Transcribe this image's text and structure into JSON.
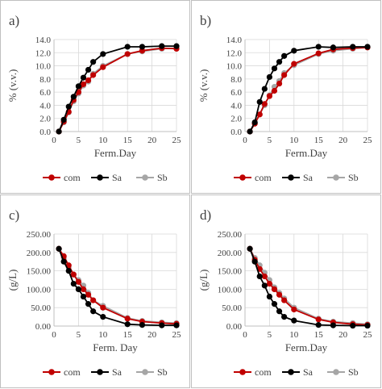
{
  "chart_data": [
    {
      "type": "line",
      "panel_label": "a)",
      "ylabel": "% (v.v.)",
      "xlabel": "Ferm.Day",
      "ylim": [
        0,
        14
      ],
      "yticks": [
        "0.0",
        "2.0",
        "4.0",
        "6.0",
        "8.0",
        "10.0",
        "12.0",
        "14.0"
      ],
      "xlim": [
        0,
        25
      ],
      "xticks": [
        "0",
        "5",
        "10",
        "15",
        "20",
        "25"
      ],
      "grid": true,
      "legend": "bottom",
      "series": [
        {
          "name": "com",
          "color": "#c00000",
          "x": [
            1,
            2,
            3,
            4,
            5,
            6,
            7,
            8,
            10,
            15,
            18,
            22,
            25
          ],
          "y": [
            0,
            1.5,
            3.0,
            4.8,
            6.0,
            7.2,
            7.8,
            8.6,
            9.8,
            11.8,
            12.3,
            12.7,
            12.6
          ]
        },
        {
          "name": "Sa",
          "color": "#000000",
          "x": [
            1,
            2,
            3,
            4,
            5,
            6,
            7,
            8,
            10,
            15,
            18,
            22,
            25
          ],
          "y": [
            0,
            1.8,
            3.8,
            5.3,
            6.9,
            8.2,
            9.4,
            10.6,
            11.8,
            12.9,
            12.9,
            13.0,
            13.0
          ]
        },
        {
          "name": "Sb",
          "color": "#a6a6a6",
          "x": [
            1,
            2,
            3,
            4,
            5,
            6,
            7,
            8,
            10,
            15,
            18,
            22,
            25
          ],
          "y": [
            0,
            1.4,
            2.9,
            4.6,
            5.8,
            7.0,
            7.6,
            8.8,
            10.0,
            11.8,
            12.2,
            12.6,
            12.7
          ]
        }
      ]
    },
    {
      "type": "line",
      "panel_label": "b)",
      "ylabel": "% (v.v.)",
      "xlabel": "Ferm.Day",
      "ylim": [
        0,
        14
      ],
      "yticks": [
        "0.0",
        "2.0",
        "4.0",
        "6.0",
        "8.0",
        "10.0",
        "12.0",
        "14.0"
      ],
      "xlim": [
        0,
        25
      ],
      "xticks": [
        "0",
        "5",
        "10",
        "15",
        "20",
        "25"
      ],
      "grid": true,
      "legend": "bottom",
      "series": [
        {
          "name": "com",
          "color": "#c00000",
          "x": [
            1,
            2,
            3,
            4,
            5,
            6,
            7,
            8,
            10,
            15,
            18,
            22,
            25
          ],
          "y": [
            0,
            1.2,
            2.6,
            4.2,
            5.4,
            6.2,
            7.3,
            8.6,
            10.3,
            11.9,
            12.5,
            12.7,
            12.8
          ]
        },
        {
          "name": "Sa",
          "color": "#000000",
          "x": [
            1,
            2,
            3,
            4,
            5,
            6,
            7,
            8,
            10,
            15,
            18,
            22,
            25
          ],
          "y": [
            0,
            1.4,
            4.5,
            6.5,
            8.3,
            9.6,
            10.6,
            11.5,
            12.3,
            12.9,
            12.8,
            12.9,
            12.9
          ]
        },
        {
          "name": "Sb",
          "color": "#a6a6a6",
          "x": [
            1,
            2,
            3,
            4,
            5,
            6,
            7,
            8,
            10,
            15,
            18,
            22,
            25
          ],
          "y": [
            0,
            1.2,
            2.6,
            4.0,
            5.5,
            6.8,
            7.7,
            8.9,
            10.1,
            11.8,
            12.3,
            12.6,
            12.8
          ]
        }
      ]
    },
    {
      "type": "line",
      "panel_label": "c)",
      "ylabel": "(g/L)",
      "xlabel": "Ferm. Day",
      "ylim": [
        0,
        250
      ],
      "yticks": [
        "0.00",
        "50.00",
        "100.00",
        "150.00",
        "200.00",
        "250.00"
      ],
      "xlim": [
        0,
        25
      ],
      "xticks": [
        "0",
        "5",
        "10",
        "15",
        "20",
        "25"
      ],
      "grid": true,
      "legend": "bottom",
      "series": [
        {
          "name": "com",
          "color": "#c00000",
          "x": [
            1,
            2,
            3,
            4,
            5,
            6,
            7,
            8,
            10,
            15,
            18,
            22,
            25
          ],
          "y": [
            210,
            190,
            165,
            140,
            120,
            100,
            85,
            70,
            50,
            20,
            12,
            8,
            6
          ]
        },
        {
          "name": "Sa",
          "color": "#000000",
          "x": [
            1,
            2,
            3,
            4,
            5,
            6,
            7,
            8,
            10,
            15,
            18,
            22,
            25
          ],
          "y": [
            210,
            175,
            150,
            115,
            100,
            80,
            60,
            40,
            25,
            5,
            3,
            2,
            2
          ]
        },
        {
          "name": "Sb",
          "color": "#a6a6a6",
          "x": [
            1,
            2,
            3,
            4,
            5,
            6,
            7,
            8,
            10,
            15,
            18,
            22,
            25
          ],
          "y": [
            210,
            185,
            160,
            140,
            125,
            110,
            90,
            70,
            55,
            22,
            14,
            10,
            8
          ]
        }
      ]
    },
    {
      "type": "line",
      "panel_label": "d)",
      "ylabel": "(g/L)",
      "xlabel": "Ferm.Day",
      "ylim": [
        0,
        250
      ],
      "yticks": [
        "0.00",
        "50.00",
        "100.00",
        "150.00",
        "200.00",
        "250.00"
      ],
      "xlim": [
        0,
        25
      ],
      "xticks": [
        "0",
        "5",
        "10",
        "15",
        "20",
        "25"
      ],
      "grid": true,
      "legend": "bottom",
      "series": [
        {
          "name": "com",
          "color": "#c00000",
          "x": [
            1,
            2,
            3,
            4,
            5,
            6,
            7,
            8,
            10,
            15,
            18,
            22,
            25
          ],
          "y": [
            210,
            180,
            155,
            135,
            115,
            100,
            85,
            70,
            45,
            18,
            10,
            5,
            3
          ]
        },
        {
          "name": "Sa",
          "color": "#000000",
          "x": [
            1,
            2,
            3,
            4,
            5,
            6,
            7,
            8,
            10,
            15,
            18,
            22,
            25
          ],
          "y": [
            210,
            175,
            135,
            110,
            80,
            60,
            40,
            25,
            15,
            3,
            2,
            1,
            1
          ]
        },
        {
          "name": "Sb",
          "color": "#a6a6a6",
          "x": [
            1,
            2,
            3,
            4,
            5,
            6,
            7,
            8,
            10,
            15,
            18,
            22,
            25
          ],
          "y": [
            210,
            185,
            165,
            145,
            125,
            105,
            90,
            75,
            50,
            20,
            12,
            8,
            5
          ]
        }
      ]
    }
  ]
}
